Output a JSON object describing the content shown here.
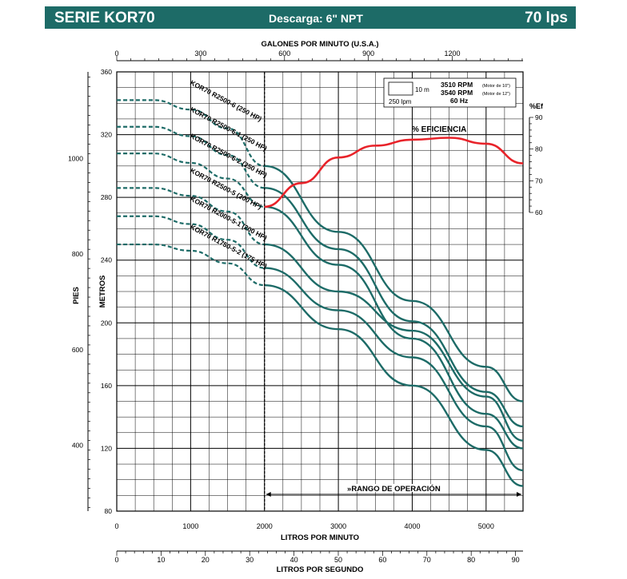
{
  "header": {
    "series": "SERIE KOR70",
    "discharge": "Descarga: 6\" NPT",
    "flow_rating": "70 lps"
  },
  "colors": {
    "banner": "#1d6b67",
    "curves": "#1d6b67",
    "efficiency": "#e8232a",
    "grid": "#000000"
  },
  "chart_data": {
    "type": "line",
    "x_axes": {
      "top": {
        "label": "GALONES POR MINUTO (U.S.A.)",
        "ticks": [
          "0",
          "300",
          "600",
          "900",
          "1200"
        ],
        "range": [
          0,
          1453
        ]
      },
      "bottom_main": {
        "label": "LITROS POR MINUTO",
        "ticks": [
          "0",
          "1000",
          "2000",
          "3000",
          "4000",
          "5000"
        ],
        "range": [
          0,
          5500
        ]
      },
      "bottom_secondary": {
        "label": "LITROS POR SEGUNDO",
        "ticks": [
          "0",
          "10",
          "20",
          "30",
          "40",
          "50",
          "60",
          "70",
          "80",
          "90"
        ],
        "range": [
          0,
          91.7
        ]
      }
    },
    "y_axes": {
      "metros": {
        "label": "METROS",
        "ticks": [
          "80",
          "120",
          "160",
          "200",
          "240",
          "280",
          "320",
          "360"
        ],
        "range": [
          80,
          360
        ]
      },
      "pies": {
        "label": "PIES",
        "ticks": [
          "400",
          "600",
          "800",
          "1000"
        ]
      },
      "efficiency": {
        "label": "%Ef",
        "ticks": [
          "60",
          "70",
          "80",
          "90"
        ],
        "range": [
          60,
          90
        ]
      }
    },
    "grid": true,
    "legend_box": {
      "scale_head": "10 m",
      "scale_flow": "250 lpm",
      "rpm_10": "3510 RPM",
      "rpm_10_note": "(Motor de 10\")",
      "rpm_12": "3540 RPM",
      "rpm_12_note": "(Motor de 12\")",
      "hz": "60 Hz"
    },
    "operating_range": {
      "label": "»RANGO DE OPERACIÓN",
      "from": 2000,
      "to": 5500
    },
    "efficiency_label": "% EFICIENCIA",
    "efficiency_curve": [
      [
        2000,
        62
      ],
      [
        2500,
        68
      ],
      [
        3000,
        74.5
      ],
      [
        3500,
        77.5
      ],
      [
        4000,
        79
      ],
      [
        4500,
        79.5
      ],
      [
        5000,
        78
      ],
      [
        5500,
        73
      ]
    ],
    "series": [
      {
        "name": "KOR70 R2500-6 (250 HP)",
        "points": [
          [
            0,
            342
          ],
          [
            500,
            342
          ],
          [
            1000,
            336
          ],
          [
            1500,
            324
          ],
          [
            2000,
            300
          ],
          [
            3000,
            258
          ],
          [
            4000,
            214
          ],
          [
            5000,
            172
          ],
          [
            5500,
            150
          ]
        ]
      },
      {
        "name": "KOR70 R2500-6-1 (250 HP)",
        "points": [
          [
            0,
            325
          ],
          [
            500,
            325
          ],
          [
            1000,
            319
          ],
          [
            1500,
            307
          ],
          [
            2000,
            286
          ],
          [
            3000,
            247
          ],
          [
            4000,
            201
          ],
          [
            5000,
            156
          ],
          [
            5500,
            134
          ]
        ]
      },
      {
        "name": "KOR70 R2500-6-2 (250 HP)",
        "points": [
          [
            0,
            308
          ],
          [
            500,
            308
          ],
          [
            1000,
            302
          ],
          [
            1500,
            292
          ],
          [
            2000,
            274
          ],
          [
            3000,
            237
          ],
          [
            4000,
            190
          ],
          [
            5000,
            142
          ],
          [
            5500,
            120
          ]
        ]
      },
      {
        "name": "KOR70 R2500-5 (200 HP)",
        "points": [
          [
            0,
            286
          ],
          [
            500,
            286
          ],
          [
            1000,
            281
          ],
          [
            1500,
            271
          ],
          [
            2000,
            250
          ],
          [
            3000,
            220
          ],
          [
            4000,
            195
          ],
          [
            5000,
            153
          ],
          [
            5500,
            125
          ]
        ]
      },
      {
        "name": "KOR70 R2000-5-1 (200 HP)",
        "points": [
          [
            0,
            268
          ],
          [
            500,
            268
          ],
          [
            1000,
            263
          ],
          [
            1500,
            253
          ],
          [
            2000,
            235
          ],
          [
            3000,
            208
          ],
          [
            4000,
            178
          ],
          [
            5000,
            134
          ],
          [
            5500,
            106
          ]
        ]
      },
      {
        "name": "KOR70 R1750-5-2 (175 HP)",
        "points": [
          [
            0,
            250
          ],
          [
            500,
            250
          ],
          [
            1000,
            246
          ],
          [
            1500,
            238
          ],
          [
            2000,
            224
          ],
          [
            3000,
            196
          ],
          [
            4000,
            160
          ],
          [
            5000,
            119
          ],
          [
            5500,
            96
          ]
        ]
      }
    ]
  }
}
